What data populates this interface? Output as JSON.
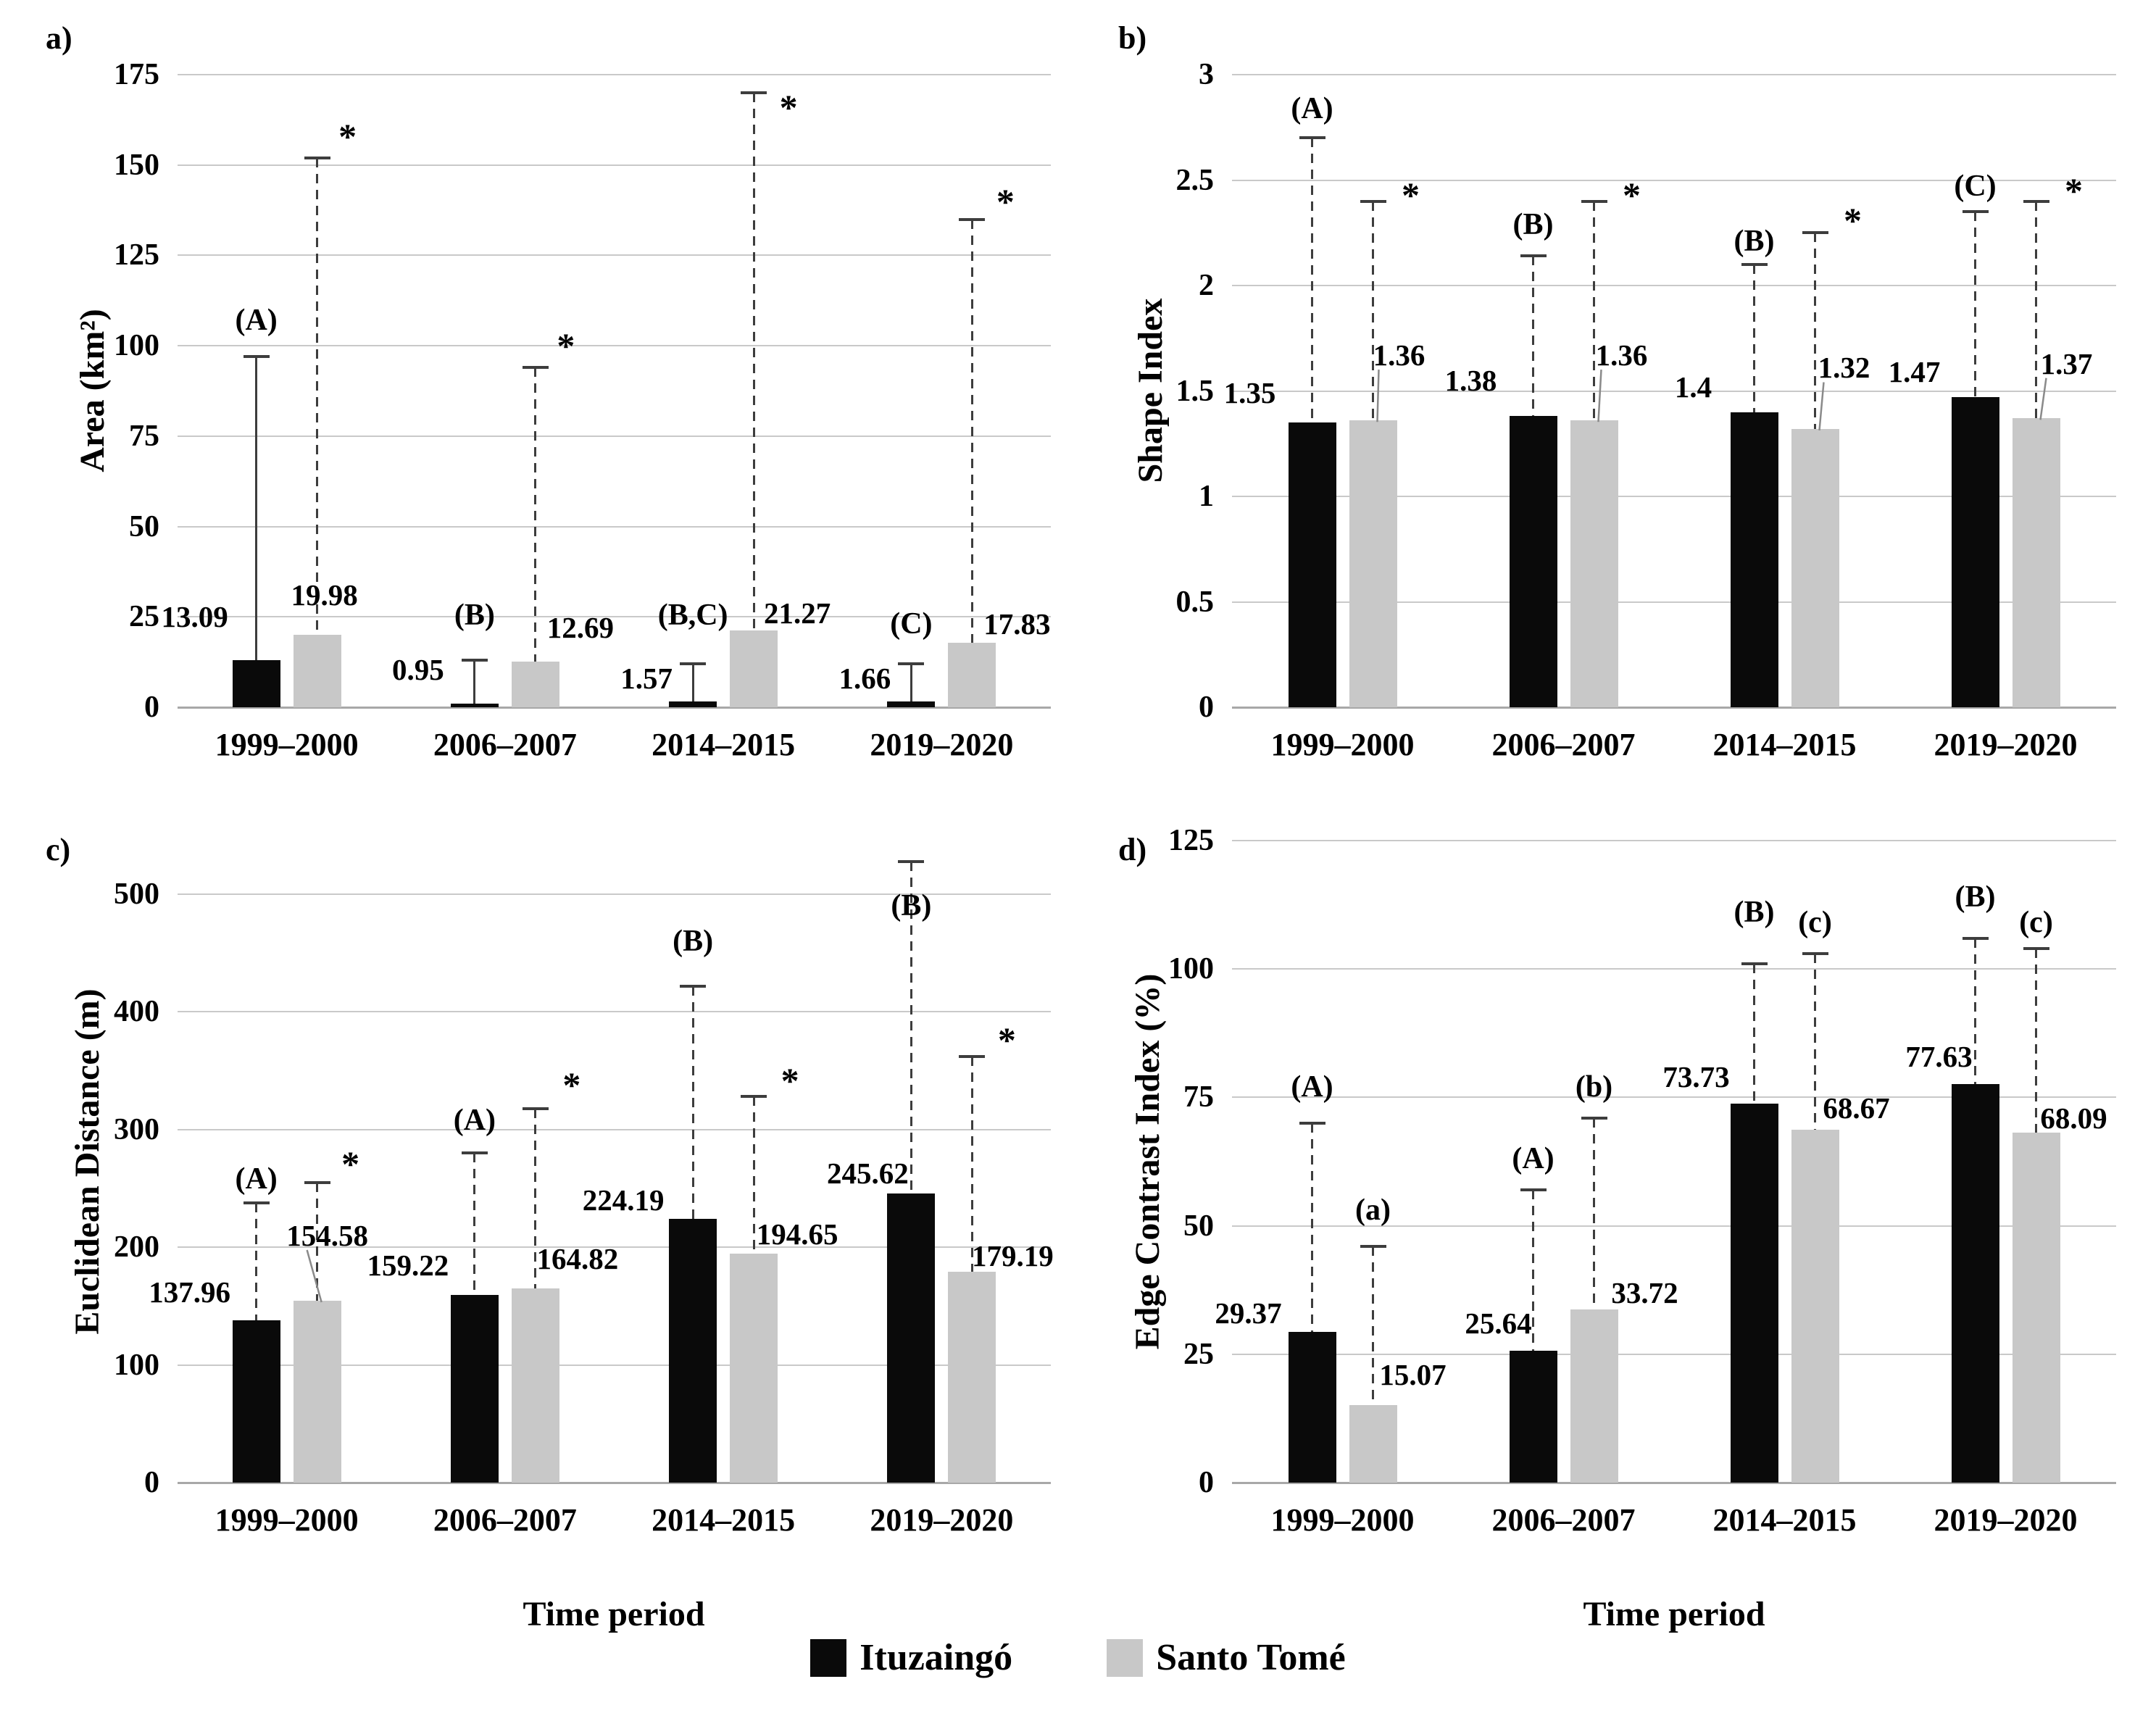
{
  "chart_data": {
    "type": "bar",
    "categories": [
      "1999–2000",
      "2006–2007",
      "2014–2015",
      "2019–2020"
    ],
    "xlabel": "Time period",
    "grid": true,
    "legend_position": "bottom",
    "legend": [
      {
        "name": "Ituzaingó",
        "color": "#0a0a0a"
      },
      {
        "name": "Santo Tomé",
        "color": "#c8c8c8"
      }
    ],
    "panels": [
      {
        "tag": "a)",
        "ylabel": "Area (km²)",
        "ymax": 175,
        "layout_max": 175,
        "ticks": [
          "0",
          "25",
          "50",
          "75",
          "100",
          "125",
          "150",
          "175"
        ],
        "show_xlabel": false,
        "series": [
          {
            "name": "Ituzaingó",
            "color": "#0a0a0a",
            "err_style": "solid",
            "values": [
              13.09,
              0.95,
              1.57,
              1.66
            ],
            "value_labels": [
              "13.09",
              "0.95",
              "1.57",
              "1.66"
            ],
            "err_top": [
              97,
              13,
              12,
              12
            ],
            "labels": [
              {
                "dx": -85,
                "y": 25
              },
              {
                "dx": -78,
                "y": 10.5
              },
              {
                "dx": -64,
                "y": 8
              },
              {
                "dx": -64,
                "y": 8
              }
            ]
          },
          {
            "name": "Santo Tomé",
            "color": "#c8c8c8",
            "err_style": "dashed",
            "values": [
              19.98,
              12.69,
              21.27,
              17.83
            ],
            "value_labels": [
              "19.98",
              "12.69",
              "21.27",
              "17.83"
            ],
            "err_top": [
              152,
              94,
              170,
              135
            ],
            "labels": [
              {
                "dx": 10,
                "y": 31
              },
              {
                "dx": 62,
                "y": 22
              },
              {
                "dx": 60,
                "y": 26
              },
              {
                "dx": 62,
                "y": 23
              }
            ]
          }
        ],
        "letters": [
          {
            "text": "(A)",
            "series": 0,
            "cat": 0,
            "dx": 0,
            "y": 107
          },
          {
            "text": "(B)",
            "series": 0,
            "cat": 1,
            "dx": 0,
            "y": 25.5
          },
          {
            "text": "(B,C)",
            "series": 0,
            "cat": 2,
            "dx": 0,
            "y": 25.5
          },
          {
            "text": "(C)",
            "series": 0,
            "cat": 3,
            "dx": 0,
            "y": 23
          }
        ],
        "asterisks": [
          {
            "cat": 0,
            "dx": 42,
            "y": 158
          },
          {
            "cat": 1,
            "dx": 42,
            "y": 100
          },
          {
            "cat": 2,
            "dx": 48,
            "y": 166
          },
          {
            "cat": 3,
            "dx": 46,
            "y": 140
          }
        ]
      },
      {
        "tag": "b)",
        "ylabel": "Shape Index",
        "ymax": 3,
        "layout_max": 3,
        "ticks": [
          "0",
          "0.5",
          "1",
          "1.5",
          "2",
          "2.5",
          "3"
        ],
        "show_xlabel": false,
        "series": [
          {
            "name": "Ituzaingó",
            "color": "#0a0a0a",
            "err_style": "dashed",
            "values": [
              1.35,
              1.38,
              1.4,
              1.47
            ],
            "value_labels": [
              "1.35",
              "1.38",
              "1.4",
              "1.47"
            ],
            "err_top": [
              2.7,
              2.14,
              2.1,
              2.35
            ],
            "labels": [
              {
                "dx": -86,
                "y": 1.49
              },
              {
                "dx": -86,
                "y": 1.55
              },
              {
                "dx": -84,
                "y": 1.52
              },
              {
                "dx": -84,
                "y": 1.59
              }
            ]
          },
          {
            "name": "Santo Tomé",
            "color": "#c8c8c8",
            "err_style": "dashed",
            "values": [
              1.36,
              1.36,
              1.32,
              1.37
            ],
            "value_labels": [
              "1.36",
              "1.36",
              "1.32",
              "1.37"
            ],
            "err_top": [
              2.4,
              2.4,
              2.25,
              2.4
            ],
            "labels": [
              {
                "dx": 36,
                "y": 1.67,
                "leader": true
              },
              {
                "dx": 38,
                "y": 1.67,
                "leader": true
              },
              {
                "dx": 40,
                "y": 1.61,
                "leader": true
              },
              {
                "dx": 42,
                "y": 1.63,
                "leader": true
              }
            ]
          }
        ],
        "letters": [
          {
            "text": "(A)",
            "series": 0,
            "cat": 0,
            "dx": 0,
            "y": 2.84
          },
          {
            "text": "(B)",
            "series": 0,
            "cat": 1,
            "dx": 0,
            "y": 2.29
          },
          {
            "text": "(B)",
            "series": 0,
            "cat": 2,
            "dx": 0,
            "y": 2.21
          },
          {
            "text": "(C)",
            "series": 0,
            "cat": 3,
            "dx": 0,
            "y": 2.47
          }
        ],
        "asterisks": [
          {
            "cat": 0,
            "dx": 52,
            "y": 2.43
          },
          {
            "cat": 1,
            "dx": 52,
            "y": 2.43
          },
          {
            "cat": 2,
            "dx": 52,
            "y": 2.31
          },
          {
            "cat": 3,
            "dx": 52,
            "y": 2.45
          }
        ]
      },
      {
        "tag": "c)",
        "ylabel": "Euclidean Distance (m)",
        "ymax": 500,
        "layout_max": 545,
        "ticks": [
          "0",
          "100",
          "200",
          "300",
          "400",
          "500"
        ],
        "show_xlabel": true,
        "series": [
          {
            "name": "Ituzaingó",
            "color": "#0a0a0a",
            "err_style": "dashed",
            "values": [
              137.96,
              159.22,
              224.19,
              245.62
            ],
            "value_labels": [
              "137.96",
              "159.22",
              "224.19",
              "245.62"
            ],
            "err_top": [
              238,
              280,
              422,
              528
            ],
            "labels": [
              {
                "dx": -92,
                "y": 162
              },
              {
                "dx": -92,
                "y": 185
              },
              {
                "dx": -96,
                "y": 240
              },
              {
                "dx": -60,
                "y": 263
              }
            ]
          },
          {
            "name": "Santo Tomé",
            "color": "#c8c8c8",
            "err_style": "dashed",
            "values": [
              154.58,
              164.82,
              194.65,
              179.19
            ],
            "value_labels": [
              "154.58",
              "164.82",
              "194.65",
              "179.19"
            ],
            "err_top": [
              255,
              318,
              328,
              362
            ],
            "labels": [
              {
                "dx": 14,
                "y": 210,
                "leader": true
              },
              {
                "dx": 58,
                "y": 190
              },
              {
                "dx": 60,
                "y": 211
              },
              {
                "dx": 56,
                "y": 193
              }
            ]
          }
        ],
        "letters": [
          {
            "text": "(A)",
            "series": 0,
            "cat": 0,
            "dx": 0,
            "y": 258
          },
          {
            "text": "(A)",
            "series": 0,
            "cat": 1,
            "dx": 0,
            "y": 308
          },
          {
            "text": "(B)",
            "series": 0,
            "cat": 2,
            "dx": 0,
            "y": 460
          },
          {
            "text": "(B)",
            "series": 0,
            "cat": 3,
            "dx": 0,
            "y": 490
          }
        ],
        "asterisks": [
          {
            "cat": 0,
            "dx": 46,
            "y": 271
          },
          {
            "cat": 1,
            "dx": 50,
            "y": 338
          },
          {
            "cat": 2,
            "dx": 50,
            "y": 342
          },
          {
            "cat": 3,
            "dx": 48,
            "y": 376
          }
        ]
      },
      {
        "tag": "d)",
        "ylabel": "Edge Contrast Index (%)",
        "ymax": 125,
        "layout_max": 125,
        "ticks": [
          "0",
          "25",
          "50",
          "75",
          "100",
          "125"
        ],
        "show_xlabel": true,
        "series": [
          {
            "name": "Ituzaingó",
            "color": "#0a0a0a",
            "err_style": "dashed",
            "values": [
              29.37,
              25.64,
              73.73,
              77.63
            ],
            "value_labels": [
              "29.37",
              "25.64",
              "73.73",
              "77.63"
            ],
            "err_top": [
              70,
              57,
              101,
              106
            ],
            "labels": [
              {
                "dx": -88,
                "y": 33
              },
              {
                "dx": -48,
                "y": 31
              },
              {
                "dx": -80,
                "y": 79
              },
              {
                "dx": -50,
                "y": 83
              }
            ]
          },
          {
            "name": "Santo Tomé",
            "color": "#c8c8c8",
            "err_style": "dashed",
            "values": [
              15.07,
              33.72,
              68.67,
              68.09
            ],
            "value_labels": [
              "15.07",
              "33.72",
              "68.67",
              "68.09"
            ],
            "err_top": [
              46,
              71,
              103,
              104
            ],
            "labels": [
              {
                "dx": 55,
                "y": 21
              },
              {
                "dx": 70,
                "y": 37
              },
              {
                "dx": 57,
                "y": 73
              },
              {
                "dx": 52,
                "y": 71
              }
            ]
          }
        ],
        "letters": [
          {
            "text": "(A)",
            "series": 0,
            "cat": 0,
            "dx": 0,
            "y": 77
          },
          {
            "text": "(A)",
            "series": 0,
            "cat": 1,
            "dx": 0,
            "y": 63
          },
          {
            "text": "(B)",
            "series": 0,
            "cat": 2,
            "dx": 0,
            "y": 111
          },
          {
            "text": "(B)",
            "series": 0,
            "cat": 3,
            "dx": 0,
            "y": 114
          },
          {
            "text": "(a)",
            "series": 1,
            "cat": 0,
            "dx": 0,
            "y": 53
          },
          {
            "text": "(b)",
            "series": 1,
            "cat": 1,
            "dx": 0,
            "y": 77
          },
          {
            "text": "(c)",
            "series": 1,
            "cat": 2,
            "dx": 0,
            "y": 109
          },
          {
            "text": "(c)",
            "series": 1,
            "cat": 3,
            "dx": 0,
            "y": 109
          }
        ],
        "asterisks": []
      }
    ]
  }
}
